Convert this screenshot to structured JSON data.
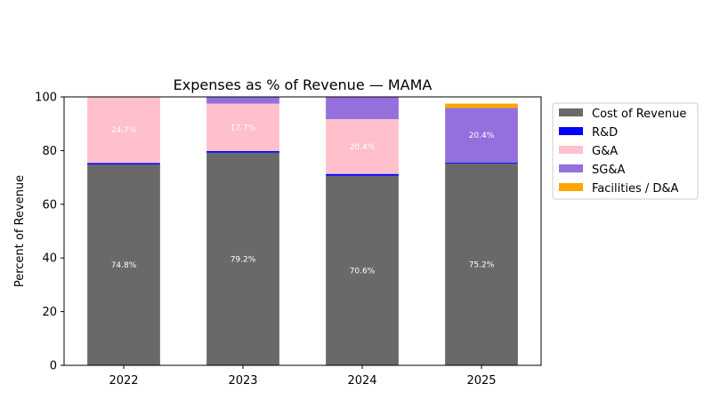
{
  "chart_data": {
    "type": "bar",
    "stacked": true,
    "title": "Expenses as % of Revenue — MAMA",
    "xlabel": "",
    "ylabel": "Percent of Revenue",
    "ylim": [
      0,
      100
    ],
    "yticks": [
      0,
      20,
      40,
      60,
      80,
      100
    ],
    "categories": [
      "2022",
      "2023",
      "2024",
      "2025"
    ],
    "legend_position": "outside-right-top",
    "grid": false,
    "series": [
      {
        "name": "Cost of Revenue",
        "color": "#696969",
        "values": [
          74.8,
          79.2,
          70.6,
          75.2
        ],
        "labels": [
          "74.8%",
          "79.2%",
          "70.6%",
          "75.2%"
        ]
      },
      {
        "name": "R&D",
        "color": "#0000ff",
        "values": [
          0.6,
          0.6,
          0.7,
          0.3
        ],
        "labels": [
          null,
          null,
          null,
          null
        ]
      },
      {
        "name": "G&A",
        "color": "#ffc0cb",
        "values": [
          24.7,
          17.7,
          20.4,
          0
        ],
        "labels": [
          "24.7%",
          "17.7%",
          "20.4%",
          null
        ]
      },
      {
        "name": "SG&A",
        "color": "#9370db",
        "values": [
          0,
          2.6,
          8.5,
          20.4
        ],
        "labels": [
          null,
          null,
          null,
          "20.4%"
        ]
      },
      {
        "name": "Facilities / D&A",
        "color": "#ffa500",
        "values": [
          0,
          0,
          0,
          1.6
        ],
        "labels": [
          null,
          null,
          null,
          null
        ]
      }
    ]
  }
}
